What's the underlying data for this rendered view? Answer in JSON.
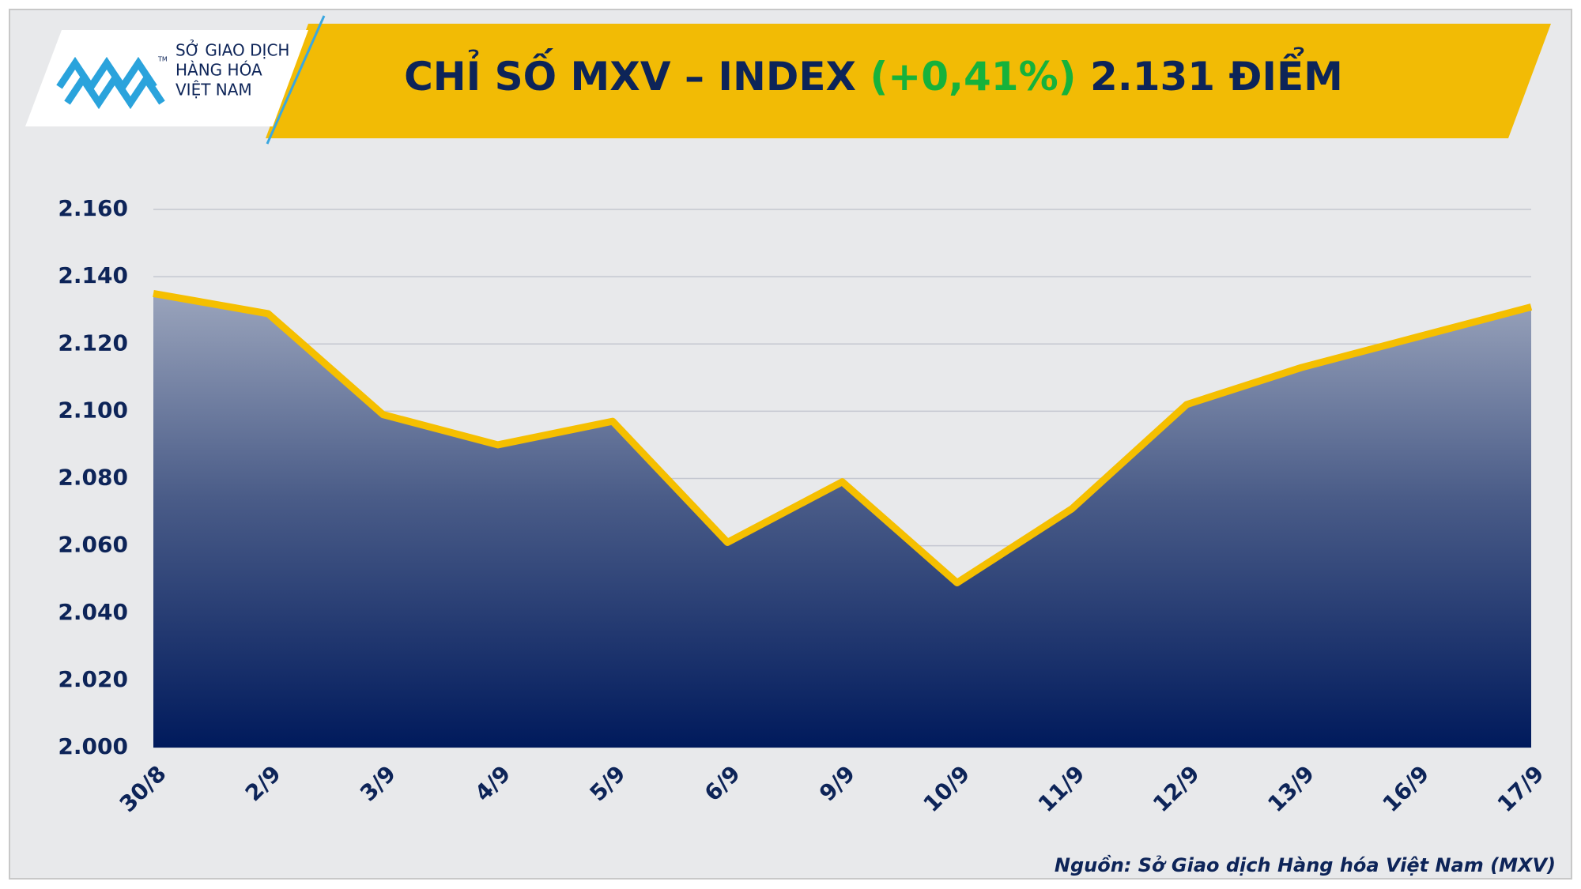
{
  "chart_data": {
    "type": "area",
    "title_parts": [
      {
        "text": "CHỈ SỐ MXV – INDEX",
        "color": "#0d2458"
      },
      {
        "text": "(+0,41%)",
        "color": "#16b23b"
      },
      {
        "text": "2.131 ĐIỂM",
        "color": "#0d2458"
      }
    ],
    "logo": {
      "lines": [
        "SỞ GIAO DỊCH",
        "HÀNG HÓA",
        "VIỆT NAM"
      ],
      "mark": "TM"
    },
    "source": "Nguồn: Sở Giao dịch Hàng hóa Việt Nam (MXV)",
    "categories": [
      "30/8",
      "2/9",
      "3/9",
      "4/9",
      "5/9",
      "6/9",
      "9/9",
      "10/9",
      "11/9",
      "12/9",
      "13/9",
      "16/9",
      "17/9"
    ],
    "values": [
      2135,
      2129,
      2099,
      2090,
      2097,
      2061,
      2079,
      2049,
      2071,
      2102,
      2113,
      2122,
      2131
    ],
    "color": "#f5bf00",
    "ylim": [
      2000,
      2160
    ],
    "yticks": [
      {
        "value": 2000,
        "label": "2.000"
      },
      {
        "value": 2020,
        "label": "2.020"
      },
      {
        "value": 2040,
        "label": "2.040"
      },
      {
        "value": 2060,
        "label": "2.060"
      },
      {
        "value": 2080,
        "label": "2.080"
      },
      {
        "value": 2100,
        "label": "2.100"
      },
      {
        "value": 2120,
        "label": "2.120"
      },
      {
        "value": 2140,
        "label": "2.140"
      },
      {
        "value": 2160,
        "label": "2.160"
      }
    ],
    "grid": true
  }
}
